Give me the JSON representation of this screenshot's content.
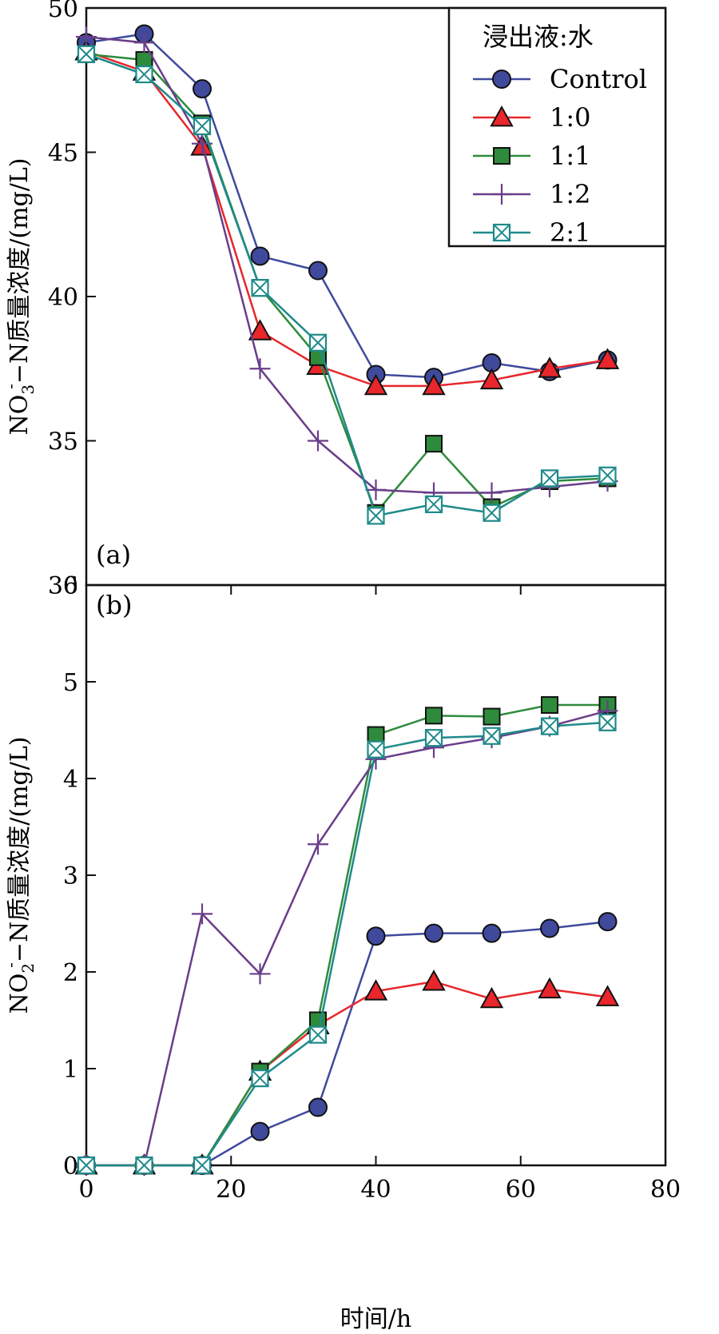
{
  "chart_data": [
    {
      "type": "line",
      "panel_label": "(a)",
      "ylabel_parts": [
        "NO",
        "3",
        "-",
        "−N质量浓度/(mg/L)"
      ],
      "xlabel": "",
      "xlim": [
        0,
        80
      ],
      "ylim": [
        30,
        50
      ],
      "y_ticks": [
        30,
        35,
        40,
        45,
        50
      ],
      "legend": {
        "title": "浸出液:水",
        "placement": "top-right"
      },
      "x": [
        0,
        8,
        16,
        24,
        32,
        40,
        48,
        56,
        64,
        72
      ],
      "series": [
        {
          "name": "Control",
          "marker": "circle",
          "color": "#3f4a9c",
          "fill": "#3f4a9c",
          "values": [
            48.8,
            49.1,
            47.2,
            41.4,
            40.9,
            37.3,
            37.2,
            37.7,
            37.4,
            37.8
          ]
        },
        {
          "name": "1:0",
          "marker": "triangle",
          "color": "#e8262b",
          "fill": "#e8262b",
          "values": [
            48.5,
            47.8,
            45.2,
            38.8,
            37.6,
            36.9,
            36.9,
            37.1,
            37.5,
            37.8
          ]
        },
        {
          "name": "1:1",
          "marker": "square",
          "color": "#2e8b3c",
          "fill": "#2e8b3c",
          "values": [
            48.4,
            48.2,
            46.0,
            40.3,
            37.9,
            32.5,
            34.9,
            32.7,
            33.6,
            33.7
          ]
        },
        {
          "name": "1:2",
          "marker": "plus",
          "color": "#6a3d8a",
          "fill": "none",
          "values": [
            49.0,
            48.8,
            45.3,
            37.5,
            35.0,
            33.3,
            33.2,
            33.2,
            33.4,
            33.6
          ]
        },
        {
          "name": "2:1",
          "marker": "boxx",
          "color": "#1f8a8a",
          "fill": "none",
          "values": [
            48.4,
            47.7,
            45.9,
            40.3,
            38.4,
            32.4,
            32.8,
            32.5,
            33.7,
            33.8
          ]
        }
      ]
    },
    {
      "type": "line",
      "panel_label": "(b)",
      "ylabel_parts": [
        "NO",
        "2",
        "-",
        "−N质量浓度/(mg/L)"
      ],
      "xlabel": "时间/h",
      "xlim": [
        0,
        80
      ],
      "ylim": [
        0,
        6
      ],
      "x_ticks": [
        0,
        20,
        40,
        60,
        80
      ],
      "y_ticks": [
        0,
        1,
        2,
        3,
        4,
        5,
        6
      ],
      "x": [
        0,
        8,
        16,
        24,
        32,
        40,
        48,
        56,
        64,
        72
      ],
      "series": [
        {
          "name": "Control",
          "marker": "circle",
          "color": "#3f4a9c",
          "fill": "#3f4a9c",
          "values": [
            0.0,
            0.0,
            0.0,
            0.35,
            0.6,
            2.37,
            2.4,
            2.4,
            2.45,
            2.52
          ]
        },
        {
          "name": "1:0",
          "marker": "triangle",
          "color": "#e8262b",
          "fill": "#e8262b",
          "values": [
            0.0,
            0.0,
            0.0,
            0.97,
            1.45,
            1.8,
            1.9,
            1.72,
            1.82,
            1.74
          ]
        },
        {
          "name": "1:1",
          "marker": "square",
          "color": "#2e8b3c",
          "fill": "#2e8b3c",
          "values": [
            0.0,
            0.0,
            0.0,
            0.97,
            1.5,
            4.45,
            4.65,
            4.64,
            4.76,
            4.76
          ]
        },
        {
          "name": "1:2",
          "marker": "plus",
          "color": "#6a3d8a",
          "fill": "none",
          "values": [
            0.0,
            0.0,
            2.6,
            1.98,
            3.32,
            4.2,
            4.32,
            4.42,
            4.54,
            4.7
          ]
        },
        {
          "name": "2:1",
          "marker": "boxx",
          "color": "#1f8a8a",
          "fill": "none",
          "values": [
            0.0,
            0.0,
            0.0,
            0.9,
            1.35,
            4.3,
            4.42,
            4.44,
            4.54,
            4.58
          ]
        }
      ]
    }
  ]
}
